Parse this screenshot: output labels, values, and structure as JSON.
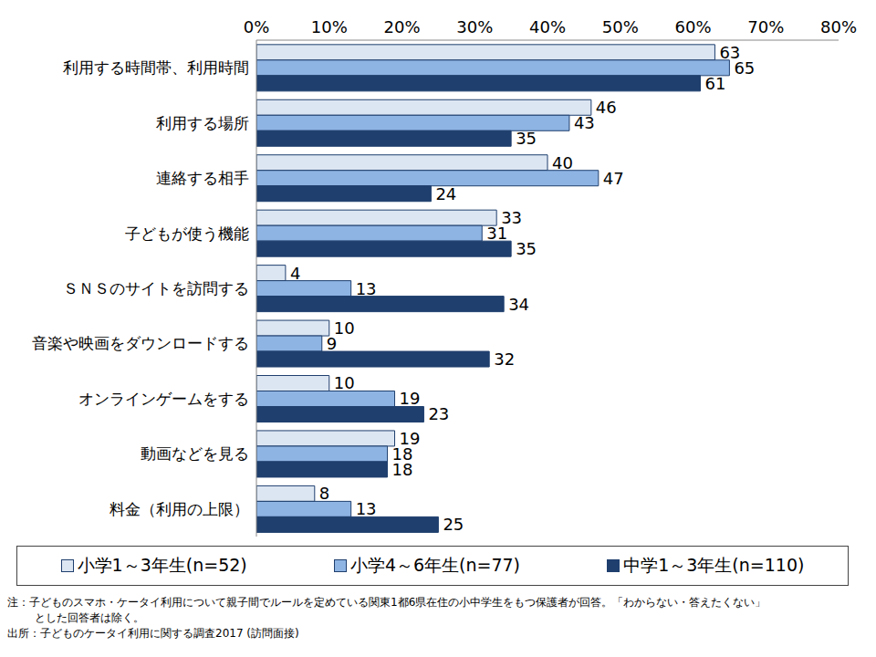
{
  "chart_data": {
    "type": "bar",
    "orientation": "horizontal",
    "categories": [
      "利用する時間帯、利用時間",
      "利用する場所",
      "連絡する相手",
      "子どもが使う機能",
      "ＳＮＳのサイトを訪問する",
      "音楽や映画をダウンロードする",
      "オンラインゲームをする",
      "動画などを見る",
      "料金（利用の上限）"
    ],
    "series": [
      {
        "name": "小学1～3年生(n=52)",
        "color": "#dce6f2",
        "values": [
          63,
          46,
          40,
          33,
          4,
          10,
          10,
          19,
          8
        ]
      },
      {
        "name": "小学4～6年生(n=77)",
        "color": "#8eb4e3",
        "values": [
          65,
          43,
          47,
          31,
          13,
          9,
          19,
          18,
          13
        ]
      },
      {
        "name": "中学1～3年生(n=110)",
        "color": "#1f3f6e",
        "values": [
          61,
          35,
          24,
          35,
          34,
          32,
          23,
          18,
          25
        ]
      }
    ],
    "xlim": [
      0,
      80
    ],
    "xticks": [
      {
        "value": 0,
        "label": "0%"
      },
      {
        "value": 10,
        "label": "10%"
      },
      {
        "value": 20,
        "label": "20%"
      },
      {
        "value": 30,
        "label": "30%"
      },
      {
        "value": 40,
        "label": "40%"
      },
      {
        "value": 50,
        "label": "50%"
      },
      {
        "value": 60,
        "label": "60%"
      },
      {
        "value": 70,
        "label": "70%"
      },
      {
        "value": 80,
        "label": "80%"
      }
    ],
    "data_labels": true,
    "legend": "bottom",
    "grid": false,
    "notes": [
      "注：子どものスマホ・ケータイ利用について親子間でルールを定めている関東1都6県在住の小中学生をもつ保護者が回答。「わからない・答えたくない」",
      "とした回答者は除く。"
    ],
    "source": "出所：子どものケータイ利用に関する調査2017 (訪問面接)"
  }
}
